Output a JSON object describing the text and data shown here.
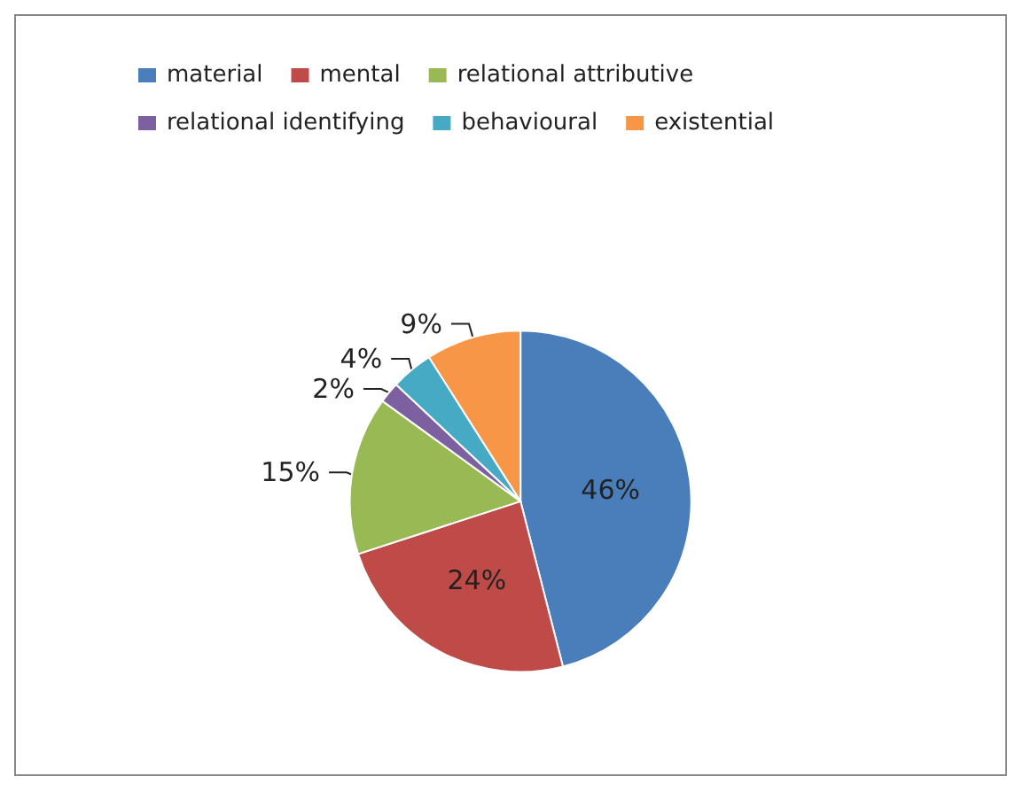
{
  "chart_data": {
    "type": "pie",
    "categories": [
      "material",
      "mental",
      "relational attributive",
      "relational identifying",
      "behavioural",
      "existential"
    ],
    "values": [
      46,
      24,
      15,
      2,
      4,
      9
    ],
    "colors": [
      "#4a7ebb",
      "#be4b48",
      "#98b954",
      "#7d60a0",
      "#46aac5",
      "#f79646"
    ],
    "value_labels": [
      "46%",
      "24%",
      "15%",
      "2%",
      "4%",
      "9%"
    ],
    "legend": "top"
  }
}
